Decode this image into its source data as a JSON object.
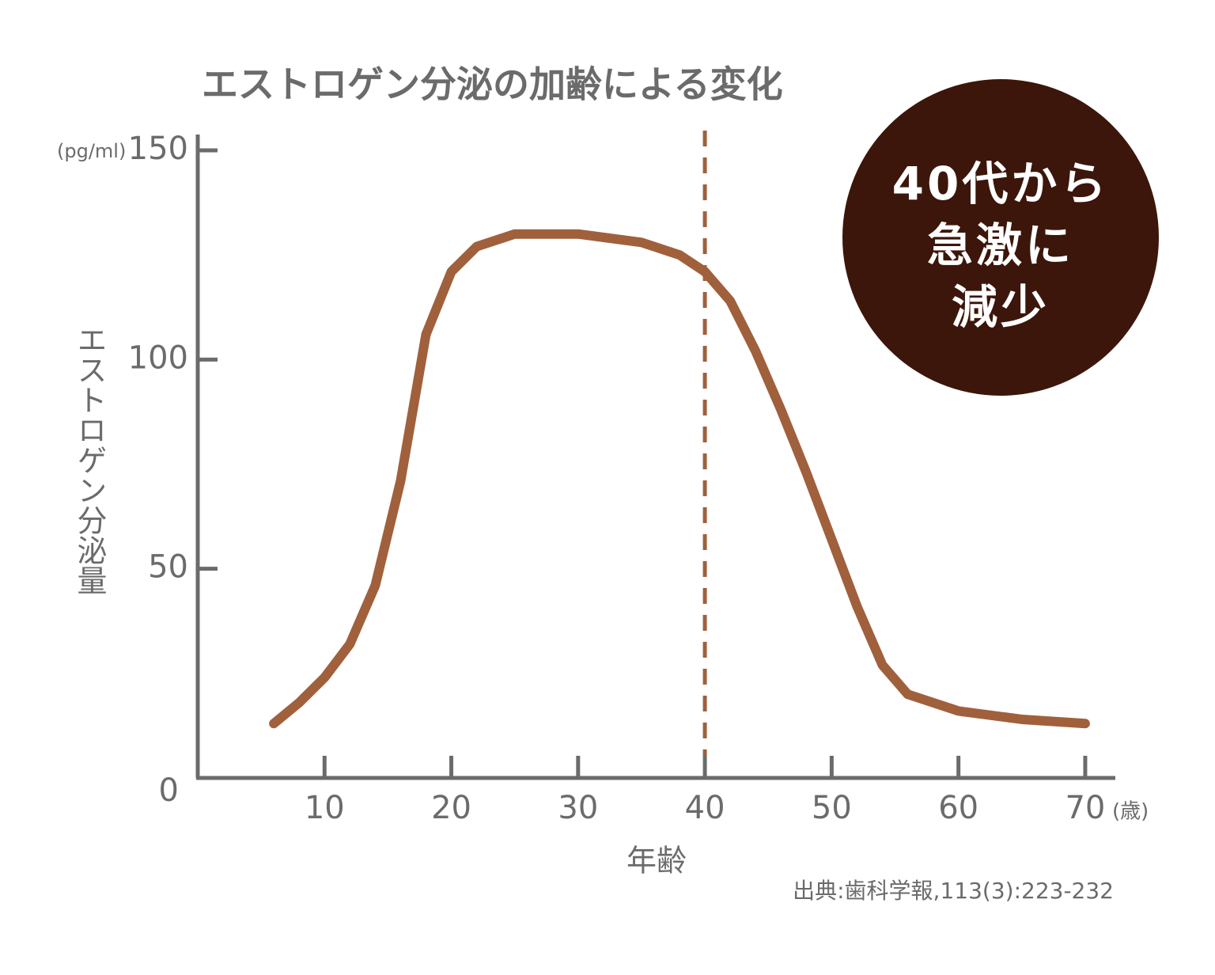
{
  "chart_data": {
    "type": "line",
    "title": "エストロゲン分泌の加齢による変化",
    "y_unit": "(pg/ml)",
    "y_label": "エストロゲン分泌量",
    "x_label": "年齢",
    "x_unit": "(歳)",
    "source": "出典:歯科学報,113(3):223-232",
    "annotation": [
      "40代から",
      "急激に",
      "減少"
    ],
    "vline": 40,
    "x": [
      6,
      8,
      10,
      12,
      14,
      16,
      18,
      20,
      22,
      25,
      30,
      35,
      38,
      40,
      42,
      44,
      46,
      48,
      50,
      52,
      54,
      56,
      60,
      65,
      70
    ],
    "series": [
      {
        "name": "エストロゲン",
        "color": "#a0603c",
        "values": [
          13,
          18,
          24,
          32,
          46,
          71,
          106,
          121,
          127,
          130,
          130,
          128,
          125,
          121,
          114,
          102,
          88,
          73,
          57,
          41,
          27,
          20,
          16,
          14,
          13
        ]
      }
    ],
    "xlim": [
      0,
      72
    ],
    "ylim": [
      0,
      150
    ],
    "xticks": [
      10,
      20,
      30,
      40,
      50,
      60,
      70
    ],
    "yticks": [
      0,
      50,
      100,
      150
    ],
    "axis_color": "#6b6b6b",
    "vline_color": "#a0603c",
    "badge_color": "#3c160a"
  }
}
